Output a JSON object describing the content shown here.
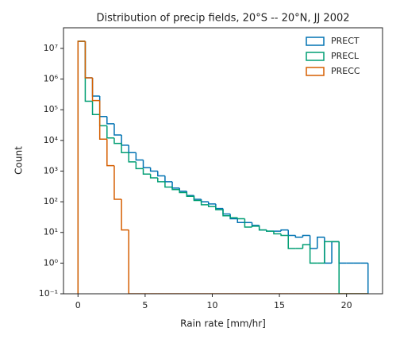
{
  "chart_data": {
    "type": "histogram",
    "title": "Distribution of precip fields, 20°S -- 20°N, JJ 2002",
    "x_label": "Rain rate [mm/hr]",
    "y_label": "Count",
    "bins": [
      0,
      0.54,
      1.08,
      1.62,
      2.16,
      2.7,
      3.24,
      3.78,
      4.32,
      4.86,
      5.4,
      5.94,
      6.48,
      7.02,
      7.56,
      8.1,
      8.64,
      9.18,
      9.72,
      10.26,
      10.8,
      11.34,
      11.88,
      12.42,
      12.96,
      13.5,
      14.04,
      14.58,
      15.12,
      15.66,
      16.2,
      16.74,
      17.28,
      17.82,
      18.36,
      18.9,
      19.44,
      19.98,
      20.52,
      21.06,
      21.6
    ],
    "series": [
      {
        "name": "PRECT",
        "color": "#0072b2",
        "values": [
          17000000,
          1100000,
          280000,
          60000,
          35000,
          15000,
          7000,
          4000,
          2300,
          1300,
          1000,
          700,
          450,
          280,
          220,
          160,
          120,
          100,
          85,
          60,
          40,
          28,
          21,
          21,
          17,
          12,
          11,
          11,
          12,
          8,
          7,
          8,
          3,
          7,
          1,
          5,
          1,
          1,
          1,
          1
        ]
      },
      {
        "name": "PRECL",
        "color": "#009e73",
        "values": [
          17000000,
          190000,
          70000,
          30000,
          12000,
          8000,
          4000,
          2000,
          1200,
          800,
          600,
          450,
          300,
          250,
          200,
          150,
          110,
          80,
          70,
          55,
          35,
          30,
          28,
          15,
          16,
          12,
          11,
          9,
          8,
          3,
          3,
          4,
          1,
          1,
          5,
          5,
          0,
          0,
          0,
          0
        ]
      },
      {
        "name": "PRECC",
        "color": "#d55e00",
        "values": [
          17000000,
          1100000,
          200000,
          11000,
          1500,
          120,
          12,
          0,
          0,
          0,
          0,
          0,
          0,
          0,
          0,
          0,
          0,
          0,
          0,
          0,
          0,
          0,
          0,
          0,
          0,
          0,
          0,
          0,
          0,
          0,
          0,
          0,
          0,
          0,
          0,
          0,
          0,
          0,
          0,
          0
        ]
      }
    ],
    "xlim": [
      -1.08,
      22.68
    ],
    "xticks": [
      0,
      5,
      10,
      15,
      20
    ],
    "ylim": [
      0.1,
      47000000
    ],
    "log_y": true,
    "yticks": [
      {
        "value": 0.1,
        "label": "10⁻¹"
      },
      {
        "value": 1,
        "label": "10⁰"
      },
      {
        "value": 10,
        "label": "10¹"
      },
      {
        "value": 100,
        "label": "10²"
      },
      {
        "value": 1000,
        "label": "10³"
      },
      {
        "value": 10000,
        "label": "10⁴"
      },
      {
        "value": 100000,
        "label": "10⁵"
      },
      {
        "value": 1000000,
        "label": "10⁶"
      },
      {
        "value": 10000000,
        "label": "10⁷"
      }
    ],
    "legend": "upper right"
  }
}
